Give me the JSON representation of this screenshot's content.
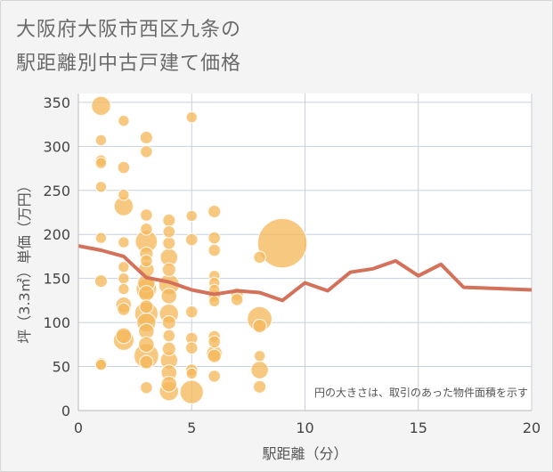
{
  "title_lines": [
    "大阪府大阪市西区九条の",
    "駅距離別中古戸建て価格"
  ],
  "chart_data": {
    "type": "scatter",
    "title": "大阪府大阪市西区九条の駅距離別中古戸建て価格",
    "xlabel": "駅距離（分）",
    "ylabel": "坪（3.3㎡）単価（万円）",
    "xlim": [
      0,
      20
    ],
    "ylim": [
      0,
      360
    ],
    "xticks": [
      0,
      5,
      10,
      15,
      20
    ],
    "yticks": [
      0,
      50,
      100,
      150,
      200,
      250,
      300,
      350
    ],
    "grid": true,
    "note": "円の大きさは、取引のあった物件面積を示す",
    "colors": {
      "bubble": "#f5b95c",
      "line": "#d4715a",
      "grid": "#c8d0dc",
      "background": "#ffffff"
    },
    "series": [
      {
        "kind": "bubbles",
        "points": [
          {
            "x": 1,
            "y": 346,
            "size": 3
          },
          {
            "x": 1,
            "y": 307,
            "size": 1
          },
          {
            "x": 1,
            "y": 284,
            "size": 1
          },
          {
            "x": 1,
            "y": 281,
            "size": 1
          },
          {
            "x": 1,
            "y": 254,
            "size": 1
          },
          {
            "x": 1,
            "y": 196,
            "size": 1
          },
          {
            "x": 1,
            "y": 147,
            "size": 1.3
          },
          {
            "x": 1,
            "y": 53,
            "size": 1.2
          },
          {
            "x": 1,
            "y": 52,
            "size": 1
          },
          {
            "x": 2,
            "y": 329,
            "size": 1
          },
          {
            "x": 2,
            "y": 276,
            "size": 1.2
          },
          {
            "x": 2,
            "y": 245,
            "size": 1
          },
          {
            "x": 2,
            "y": 232,
            "size": 3
          },
          {
            "x": 2,
            "y": 191,
            "size": 1
          },
          {
            "x": 2,
            "y": 163,
            "size": 1
          },
          {
            "x": 2,
            "y": 150,
            "size": 1
          },
          {
            "x": 2,
            "y": 138,
            "size": 1
          },
          {
            "x": 2,
            "y": 120,
            "size": 2
          },
          {
            "x": 2,
            "y": 115,
            "size": 1.3
          },
          {
            "x": 2,
            "y": 80,
            "size": 3.5
          },
          {
            "x": 2,
            "y": 85,
            "size": 2
          },
          {
            "x": 3,
            "y": 310,
            "size": 1.3
          },
          {
            "x": 3,
            "y": 294,
            "size": 1.2
          },
          {
            "x": 3,
            "y": 222,
            "size": 1.2
          },
          {
            "x": 3,
            "y": 206,
            "size": 1.2
          },
          {
            "x": 3,
            "y": 192,
            "size": 4
          },
          {
            "x": 3,
            "y": 178,
            "size": 1.5
          },
          {
            "x": 3,
            "y": 170,
            "size": 1.2
          },
          {
            "x": 3,
            "y": 160,
            "size": 2
          },
          {
            "x": 3,
            "y": 145,
            "size": 2.5
          },
          {
            "x": 3,
            "y": 138,
            "size": 3.5
          },
          {
            "x": 3,
            "y": 133,
            "size": 2
          },
          {
            "x": 3,
            "y": 118,
            "size": 1.5
          },
          {
            "x": 3,
            "y": 110,
            "size": 4.5
          },
          {
            "x": 3,
            "y": 100,
            "size": 3
          },
          {
            "x": 3,
            "y": 90,
            "size": 2
          },
          {
            "x": 3,
            "y": 75,
            "size": 2
          },
          {
            "x": 3,
            "y": 62,
            "size": 5
          },
          {
            "x": 3,
            "y": 55,
            "size": 1.5
          },
          {
            "x": 3,
            "y": 26,
            "size": 1.2
          },
          {
            "x": 4,
            "y": 216,
            "size": 1.3
          },
          {
            "x": 4,
            "y": 203,
            "size": 1.2
          },
          {
            "x": 4,
            "y": 190,
            "size": 1.3
          },
          {
            "x": 4,
            "y": 174,
            "size": 2.5
          },
          {
            "x": 4,
            "y": 160,
            "size": 1.5
          },
          {
            "x": 4,
            "y": 143,
            "size": 3.5
          },
          {
            "x": 4,
            "y": 130,
            "size": 2
          },
          {
            "x": 4,
            "y": 110,
            "size": 3
          },
          {
            "x": 4,
            "y": 100,
            "size": 1.5
          },
          {
            "x": 4,
            "y": 85,
            "size": 1.2
          },
          {
            "x": 4,
            "y": 70,
            "size": 1.5
          },
          {
            "x": 4,
            "y": 57,
            "size": 2.5
          },
          {
            "x": 4,
            "y": 43,
            "size": 2
          },
          {
            "x": 4,
            "y": 30,
            "size": 2
          },
          {
            "x": 4,
            "y": 22,
            "size": 3
          },
          {
            "x": 5,
            "y": 333,
            "size": 1
          },
          {
            "x": 5,
            "y": 221,
            "size": 1
          },
          {
            "x": 5,
            "y": 194,
            "size": 1.2
          },
          {
            "x": 5,
            "y": 112,
            "size": 1.2
          },
          {
            "x": 5,
            "y": 82,
            "size": 1.2
          },
          {
            "x": 5,
            "y": 71,
            "size": 1.2
          },
          {
            "x": 5,
            "y": 46,
            "size": 1.2
          },
          {
            "x": 5,
            "y": 42,
            "size": 1
          },
          {
            "x": 5,
            "y": 21,
            "size": 4.5
          },
          {
            "x": 6,
            "y": 226,
            "size": 1.3
          },
          {
            "x": 6,
            "y": 196,
            "size": 1.2
          },
          {
            "x": 6,
            "y": 182,
            "size": 1.2
          },
          {
            "x": 6,
            "y": 153,
            "size": 1
          },
          {
            "x": 6,
            "y": 145,
            "size": 1
          },
          {
            "x": 6,
            "y": 137,
            "size": 1
          },
          {
            "x": 6,
            "y": 130,
            "size": 1.2
          },
          {
            "x": 6,
            "y": 124,
            "size": 1
          },
          {
            "x": 6,
            "y": 84,
            "size": 1.2
          },
          {
            "x": 6,
            "y": 78,
            "size": 1.2
          },
          {
            "x": 6,
            "y": 65,
            "size": 2
          },
          {
            "x": 6,
            "y": 62,
            "size": 1.5
          },
          {
            "x": 6,
            "y": 39,
            "size": 1.2
          },
          {
            "x": 7,
            "y": 132,
            "size": 1.3
          },
          {
            "x": 7,
            "y": 126,
            "size": 1.2
          },
          {
            "x": 8,
            "y": 174,
            "size": 1.2
          },
          {
            "x": 8,
            "y": 104,
            "size": 5
          },
          {
            "x": 8,
            "y": 96,
            "size": 1.5
          },
          {
            "x": 8,
            "y": 62,
            "size": 1
          },
          {
            "x": 8,
            "y": 46,
            "size": 2.5
          },
          {
            "x": 8,
            "y": 27,
            "size": 1.3
          },
          {
            "x": 9,
            "y": 190,
            "size": 20
          }
        ]
      },
      {
        "kind": "line",
        "x": [
          0,
          1,
          2,
          3,
          4,
          5,
          6,
          7,
          8,
          9,
          10,
          11,
          12,
          13,
          14,
          15,
          16,
          17,
          18,
          19,
          20
        ],
        "y": [
          187,
          182,
          175,
          151,
          146,
          137,
          132,
          136,
          134,
          125,
          145,
          136,
          157,
          161,
          170,
          153,
          166,
          140,
          139,
          138,
          137
        ]
      }
    ]
  }
}
